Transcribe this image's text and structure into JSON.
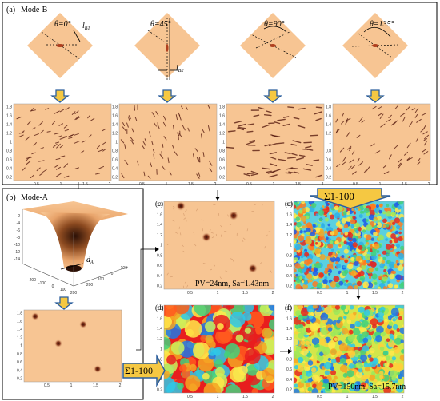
{
  "colors": {
    "tan": "#f7c593",
    "tan_dark": "#f0b37e",
    "pit": "#5a1e12",
    "arrow_fill": "#f5c842",
    "arrow_stroke": "#2c5f9e"
  },
  "panel_a": {
    "label": "(a)",
    "mode": "Mode-B",
    "angles": [
      {
        "theta": "θ=0°",
        "dim_label": "l",
        "dim_sub": "B1"
      },
      {
        "theta": "θ=45°",
        "dim_label": "l",
        "dim_sub": "B2"
      },
      {
        "theta": "θ=90°"
      },
      {
        "theta": "θ=135°"
      }
    ],
    "axis_y_ticks": [
      "1.8",
      "1.6",
      "1.4",
      "1.2",
      "1",
      "0.8",
      "0.6",
      "0.4",
      "0.2"
    ],
    "axis_x_ticks": [
      "0.5",
      "1",
      "1.5",
      "2"
    ]
  },
  "panel_b": {
    "label": "(b)",
    "mode": "Mode-A",
    "dim_label": "d",
    "dim_sub": "A",
    "z_ticks": [
      "-2",
      "-4",
      "-6",
      "-8",
      "-10",
      "-12",
      "-14"
    ],
    "xy_ticks": [
      "-200",
      "-100",
      "0",
      "100",
      "200"
    ]
  },
  "panel_c": {
    "label": "(c)",
    "stats": "PV=24nm, Sa=1.43nm"
  },
  "panel_d": {
    "label": "(d)"
  },
  "panel_e": {
    "label": "(e)"
  },
  "panel_f": {
    "label": "(f)",
    "stats": "PV=150nm, Sa=15.7nm"
  },
  "sum_label_1": "Σ1-100",
  "sum_label_2": "Σ1-100"
}
